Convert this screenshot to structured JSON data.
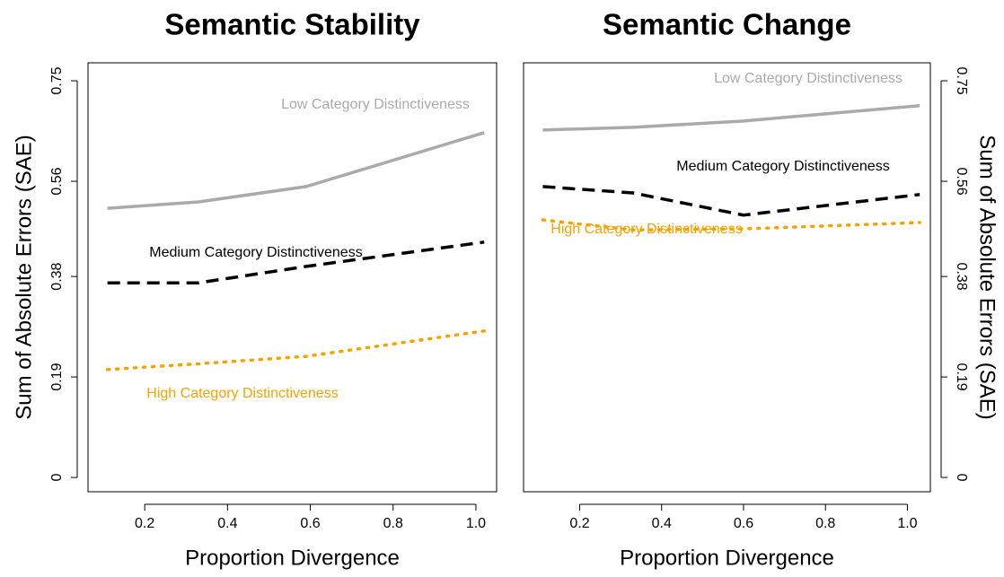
{
  "chart_data": [
    {
      "type": "line",
      "title": "Semantic Stability",
      "xlabel": "Proportion Divergence",
      "ylabel": "Sum of Absolute Errors (SAE)",
      "x": [
        0.11,
        0.33,
        0.59,
        1.02
      ],
      "xlim": [
        0.063,
        1.05
      ],
      "xticks": [
        0.2,
        0.4,
        0.6,
        0.8,
        {
          "value": 1.0,
          "label": "1.0"
        }
      ],
      "ylim": [
        -0.027,
        0.784
      ],
      "yticks": [
        0,
        0.19,
        0.38,
        0.56,
        0.75
      ],
      "y_axis_side": "left",
      "series": [
        {
          "name": "Low Category Distinctiveness",
          "color": "#aaaaaa",
          "linestyle": "solid",
          "values": [
            0.509,
            0.521,
            0.55,
            0.652
          ]
        },
        {
          "name": "Medium Category Distinctiveness",
          "color": "#000000",
          "linestyle": "dashed",
          "values": [
            0.368,
            0.368,
            0.399,
            0.445
          ]
        },
        {
          "name": "High Category Distinctiveness",
          "color": "#f5a300",
          "linestyle": "dotted",
          "values": [
            0.204,
            0.215,
            0.229,
            0.277
          ]
        }
      ]
    },
    {
      "type": "line",
      "title": "Semantic Change",
      "xlabel": "Proportion Divergence",
      "ylabel": "Sum of Absolute Errors (SAE)",
      "x": [
        0.11,
        0.33,
        0.6,
        1.03
      ],
      "xlim": [
        0.063,
        1.056
      ],
      "xticks": [
        0.2,
        0.4,
        0.6,
        0.8,
        {
          "value": 1.0,
          "label": "1.0"
        }
      ],
      "ylim": [
        -0.027,
        0.784
      ],
      "yticks": [
        0,
        0.19,
        0.38,
        0.56,
        0.75
      ],
      "y_axis_side": "right",
      "series": [
        {
          "name": "Low Category Distinctiveness",
          "color": "#aaaaaa",
          "linestyle": "solid",
          "values": [
            0.657,
            0.662,
            0.674,
            0.703
          ]
        },
        {
          "name": "Medium Category Distinctiveness",
          "color": "#000000",
          "linestyle": "dashed",
          "values": [
            0.55,
            0.538,
            0.496,
            0.535
          ]
        },
        {
          "name": "High Category Distinctiveness",
          "color": "#f5a300",
          "linestyle": "dotted",
          "values": [
            0.487,
            0.468,
            0.47,
            0.482
          ]
        }
      ]
    }
  ]
}
